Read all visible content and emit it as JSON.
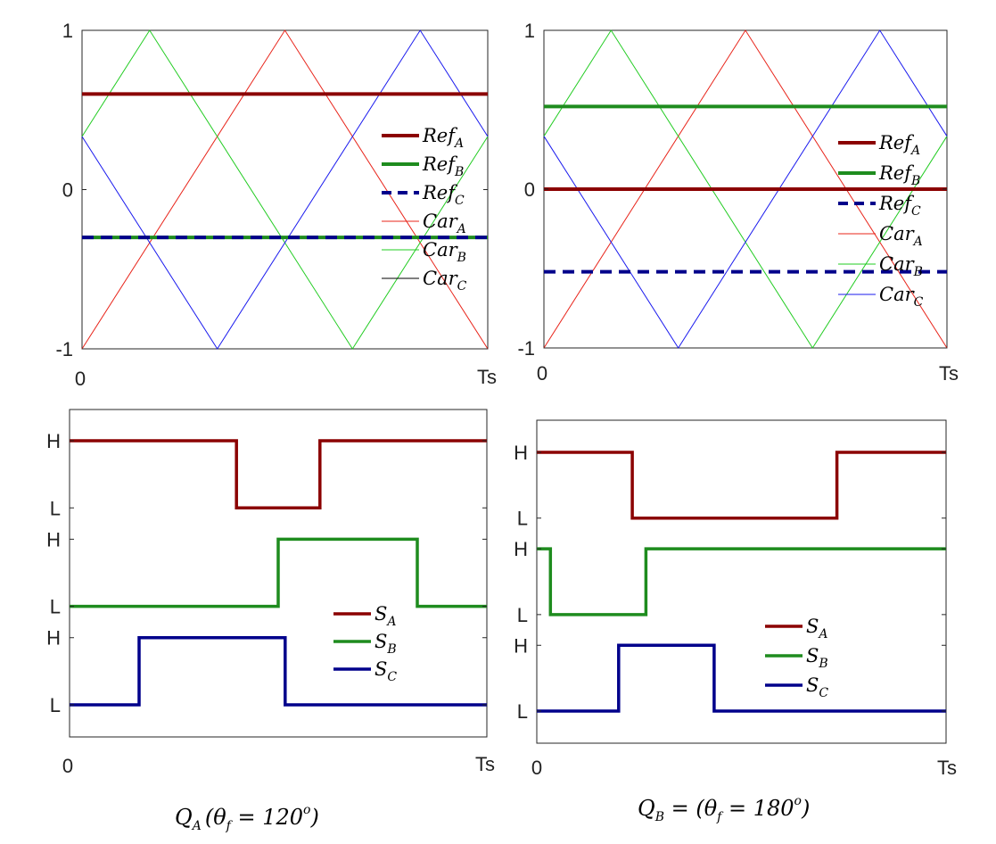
{
  "chart_data": [
    {
      "type": "line",
      "panel": "top-left",
      "title": "",
      "xlabel": "",
      "ylabel": "",
      "xlim": [
        0,
        6
      ],
      "ylim": [
        -1,
        1
      ],
      "yticks": [
        {
          "v": -1,
          "label": "-1"
        },
        {
          "v": 0,
          "label": "0"
        },
        {
          "v": 1,
          "label": "1"
        }
      ],
      "xticks": [
        {
          "v": 0,
          "label": "0"
        },
        {
          "v": 6,
          "label": "Ts"
        }
      ],
      "legend_position": "right",
      "series": [
        {
          "name": "Ref",
          "sub": "A",
          "color": "#8b0000",
          "width": 4,
          "dash": "",
          "x": [
            0,
            6
          ],
          "y": [
            0.6,
            0.6
          ]
        },
        {
          "name": "Ref",
          "sub": "B",
          "color": "#1e8c1e",
          "width": 4,
          "dash": "",
          "x": [
            0,
            6
          ],
          "y": [
            -0.3,
            -0.3
          ]
        },
        {
          "name": "Ref",
          "sub": "C",
          "color": "#00008b",
          "width": 4,
          "dash": "13 8",
          "x": [
            0,
            6
          ],
          "y": [
            -0.3,
            -0.3
          ]
        },
        {
          "name": "Car",
          "sub": "A",
          "color": "#e8241a",
          "width": 1,
          "dash": "",
          "x": [
            0,
            3,
            6
          ],
          "y": [
            -1,
            1,
            -1
          ]
        },
        {
          "name": "Car",
          "sub": "B",
          "color": "#22cc22",
          "width": 1,
          "dash": "",
          "x": [
            0,
            1,
            4,
            6
          ],
          "y": [
            0.3333,
            1,
            -1,
            0.3333
          ]
        },
        {
          "name": "Car",
          "sub": "C",
          "color": "#1a1aee",
          "width": 1,
          "dash": "",
          "legend_color": "#000000",
          "x": [
            0,
            2,
            5,
            6
          ],
          "y": [
            0.3333,
            -1,
            1,
            0.3333
          ]
        }
      ]
    },
    {
      "type": "line",
      "panel": "top-right",
      "title": "",
      "xlabel": "",
      "ylabel": "",
      "xlim": [
        0,
        6
      ],
      "ylim": [
        -1,
        1
      ],
      "yticks": [
        {
          "v": -1,
          "label": "-1"
        },
        {
          "v": 0,
          "label": "0"
        },
        {
          "v": 1,
          "label": "1"
        }
      ],
      "xticks": [
        {
          "v": 0,
          "label": "0"
        },
        {
          "v": 6,
          "label": "Ts"
        }
      ],
      "legend_position": "right",
      "series": [
        {
          "name": "Ref",
          "sub": "A",
          "color": "#8b0000",
          "width": 4,
          "dash": "",
          "x": [
            0,
            6
          ],
          "y": [
            0,
            0
          ]
        },
        {
          "name": "Ref",
          "sub": "B",
          "color": "#1e8c1e",
          "width": 4,
          "dash": "",
          "x": [
            0,
            6
          ],
          "y": [
            0.52,
            0.52
          ]
        },
        {
          "name": "Ref",
          "sub": "C",
          "color": "#00008b",
          "width": 4,
          "dash": "13 8",
          "x": [
            0,
            6
          ],
          "y": [
            -0.52,
            -0.52
          ]
        },
        {
          "name": "Car",
          "sub": "A",
          "color": "#e8241a",
          "width": 1,
          "dash": "",
          "x": [
            0,
            3,
            6
          ],
          "y": [
            -1,
            1,
            -1
          ]
        },
        {
          "name": "Car",
          "sub": "B",
          "color": "#22cc22",
          "width": 1,
          "dash": "",
          "x": [
            0,
            1,
            4,
            6
          ],
          "y": [
            0.3333,
            1,
            -1,
            0.3333
          ]
        },
        {
          "name": "Car",
          "sub": "C",
          "color": "#1a1aee",
          "width": 1,
          "dash": "",
          "x": [
            0,
            2,
            5,
            6
          ],
          "y": [
            0.3333,
            -1,
            1,
            0.3333
          ]
        }
      ]
    },
    {
      "type": "step",
      "panel": "bottom-left",
      "title": "",
      "xlabel": "",
      "ylabel": "",
      "xlim": [
        0,
        6
      ],
      "ylim": [
        -0.4,
        6.8
      ],
      "yticks": [
        {
          "v": 0,
          "label": "L"
        },
        {
          "v": 1.5,
          "label": "H"
        },
        {
          "v": 2.2,
          "label": "L"
        },
        {
          "v": 3.7,
          "label": "H"
        },
        {
          "v": 4.4,
          "label": "L"
        },
        {
          "v": 5.9,
          "label": "H"
        }
      ],
      "xticks": [
        {
          "v": 0,
          "label": "0"
        },
        {
          "v": 6,
          "label": "Ts"
        }
      ],
      "legend_position": "right",
      "series": [
        {
          "name": "S",
          "sub": "A",
          "color": "#8b0000",
          "width": 3.5,
          "x": [
            0,
            2.4,
            2.4,
            3.6,
            3.6,
            6
          ],
          "y": [
            5.9,
            5.9,
            4.4,
            4.4,
            5.9,
            5.9
          ]
        },
        {
          "name": "S",
          "sub": "B",
          "color": "#1e8c1e",
          "width": 3.5,
          "x": [
            0,
            3,
            3,
            5,
            5,
            6
          ],
          "y": [
            2.2,
            2.2,
            3.7,
            3.7,
            2.2,
            2.2
          ]
        },
        {
          "name": "S",
          "sub": "C",
          "color": "#00008b",
          "width": 3.5,
          "x": [
            0,
            1,
            1,
            3.1,
            3.1,
            6
          ],
          "y": [
            0,
            0,
            1.5,
            1.5,
            0,
            0
          ]
        }
      ]
    },
    {
      "type": "step",
      "panel": "bottom-right",
      "title": "",
      "xlabel": "",
      "ylabel": "",
      "xlim": [
        0,
        6
      ],
      "ylim": [
        -0.5,
        6.8
      ],
      "yticks": [
        {
          "v": 0,
          "label": "L"
        },
        {
          "v": 1.5,
          "label": "H"
        },
        {
          "v": 2.2,
          "label": "L"
        },
        {
          "v": 3.7,
          "label": "H"
        },
        {
          "v": 4.4,
          "label": "L"
        },
        {
          "v": 5.9,
          "label": "H"
        }
      ],
      "xticks": [
        {
          "v": 0,
          "label": "0"
        },
        {
          "v": 6,
          "label": "Ts"
        }
      ],
      "legend_position": "right",
      "series": [
        {
          "name": "S",
          "sub": "A",
          "color": "#8b0000",
          "width": 3.5,
          "x": [
            0,
            1.4,
            1.4,
            4.4,
            4.4,
            6
          ],
          "y": [
            5.9,
            5.9,
            4.4,
            4.4,
            5.9,
            5.9
          ]
        },
        {
          "name": "S",
          "sub": "B",
          "color": "#1e8c1e",
          "width": 3.5,
          "x": [
            0,
            0.2,
            0.2,
            1.6,
            1.6,
            6
          ],
          "y": [
            3.7,
            3.7,
            2.2,
            2.2,
            3.7,
            3.7
          ]
        },
        {
          "name": "S",
          "sub": "C",
          "color": "#00008b",
          "width": 3.5,
          "x": [
            0,
            1.2,
            1.2,
            2.6,
            2.6,
            6
          ],
          "y": [
            0,
            0,
            1.5,
            1.5,
            0,
            0
          ]
        }
      ]
    }
  ],
  "captions": {
    "left": {
      "q": "Q",
      "qsub": "A",
      "theta": "θ",
      "thetasub": "f",
      "text_left": "(",
      "text_right": " = 120",
      "sup": "o",
      "close": ")"
    },
    "right": {
      "q": "Q",
      "qsub": "B",
      "eq": " = (",
      "theta": "θ",
      "thetasub": "f",
      "text_right": " = 180",
      "sup": "o",
      "close": ")"
    }
  }
}
